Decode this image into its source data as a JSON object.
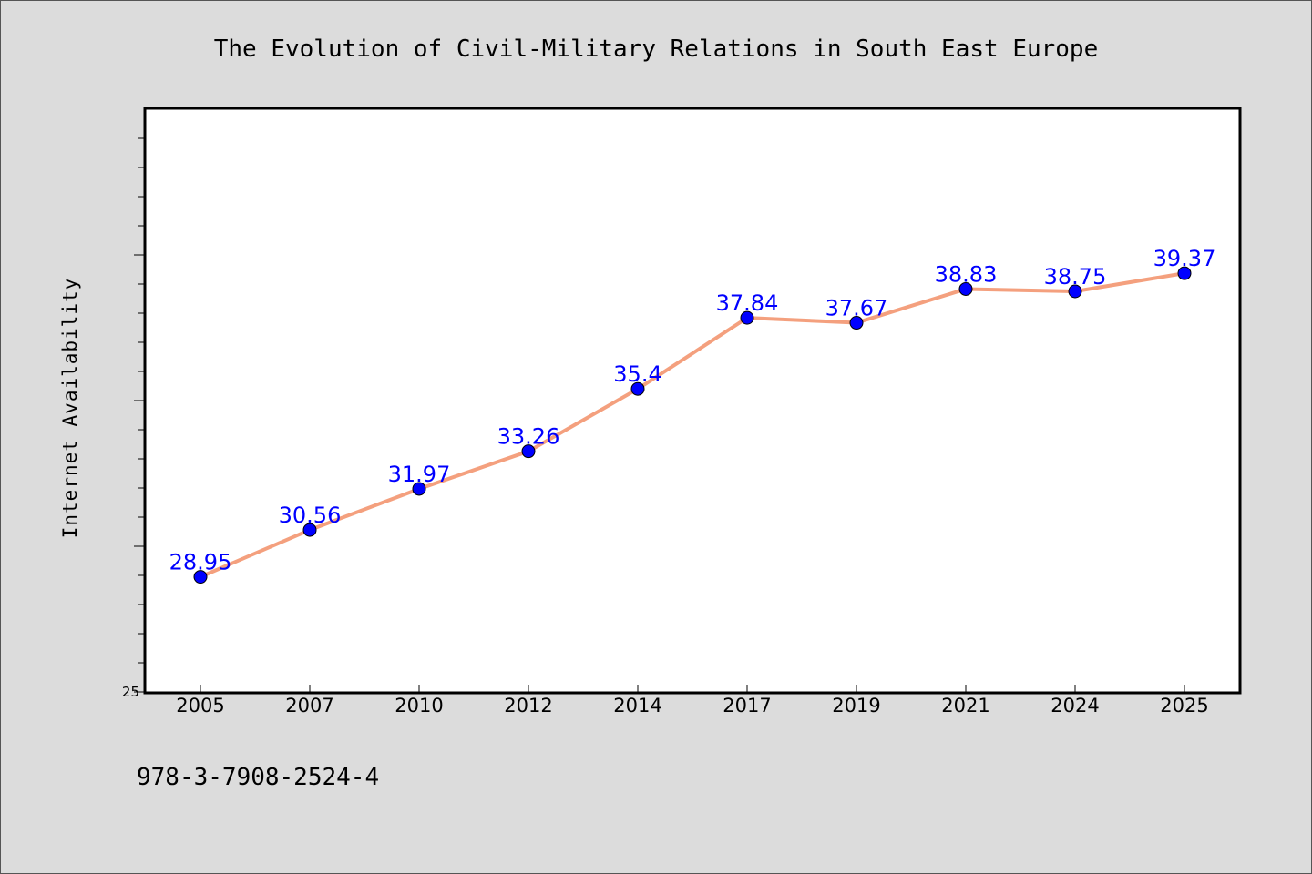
{
  "chart_data": {
    "type": "line",
    "title": "The Evolution of Civil-Military Relations in South East Europe",
    "xlabel": "",
    "ylabel": "Internet Availability",
    "categories": [
      "2005",
      "2007",
      "2010",
      "2012",
      "2014",
      "2017",
      "2019",
      "2021",
      "2024",
      "2025"
    ],
    "values": [
      28.95,
      30.56,
      31.97,
      33.26,
      35.4,
      37.84,
      37.67,
      38.83,
      38.75,
      39.37
    ],
    "data_labels": [
      "28.95",
      "30.56",
      "31.97",
      "33.26",
      "35.4",
      "37.84",
      "37.67",
      "38.83",
      "38.75",
      "39.37"
    ],
    "ylim": [
      25,
      45
    ],
    "y_tick_labels": [
      "25"
    ],
    "grid": false,
    "line_color": "#f4a07e",
    "marker_color": "#0000ff",
    "label_color": "#0000ff",
    "plot_background": "#ffffff",
    "page_background": "#dcdcdc"
  },
  "footer": {
    "isbn": "978-3-7908-2524-4"
  }
}
